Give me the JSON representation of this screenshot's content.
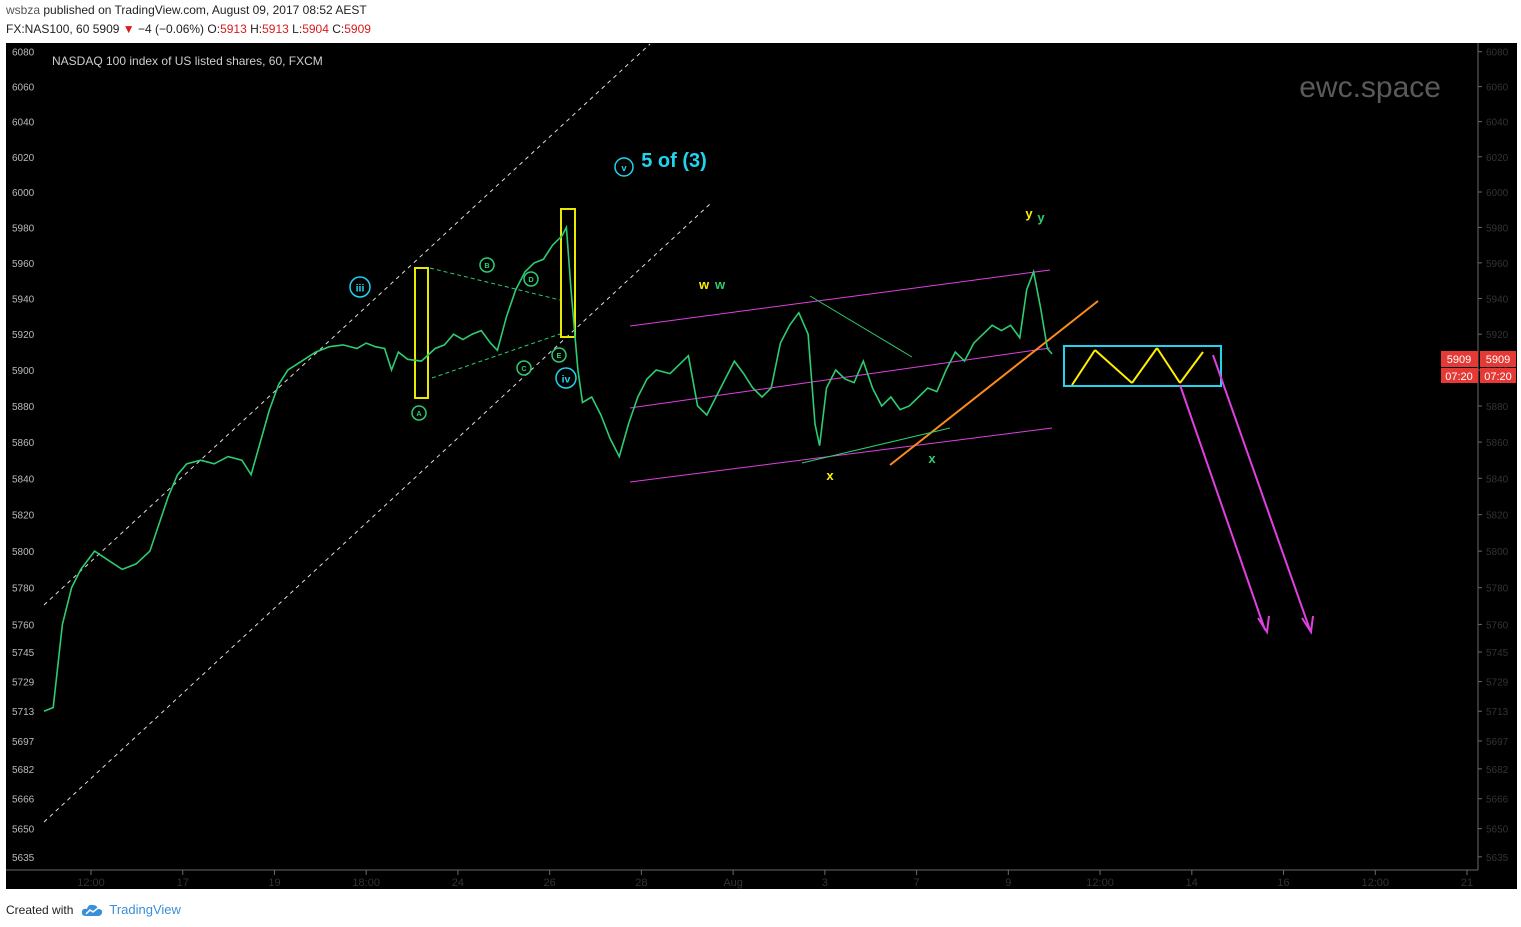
{
  "header": {
    "username": "wsbza",
    "published_text": "published on TradingView.com, August 09, 2017 08:52 AEST",
    "symbol_interval": "FX:NAS100, 60",
    "last": "5909",
    "change": "−4 (−0.06%)",
    "open_label": "O:",
    "open": "5913",
    "high_label": "H:",
    "high": "5913",
    "low_label": "L:",
    "low": "5904",
    "close_label": "C:",
    "close": "5909"
  },
  "footer": {
    "created_with": "Created with",
    "brand": "TradingView"
  },
  "chart_data": {
    "type": "line",
    "title": "NASDAQ 100 index of US listed shares, 60, FXCM",
    "watermark": "ewc.space",
    "y_scale": "log",
    "ylim": [
      5628,
      6085
    ],
    "y_ticks": [
      6080,
      6060,
      6040,
      6020,
      6000,
      5980,
      5960,
      5940,
      5920,
      5900,
      5880,
      5860,
      5840,
      5820,
      5800,
      5780,
      5760,
      5745,
      5729,
      5713,
      5697,
      5682,
      5666,
      5650,
      5635
    ],
    "x_ticks": [
      "12:00",
      "17",
      "19",
      "18:00",
      "24",
      "26",
      "28",
      "Aug",
      "3",
      "7",
      "9",
      "12:00",
      "14",
      "16",
      "12:00",
      "21"
    ],
    "price_label": "5909",
    "countdown_label": "07:20",
    "series": [
      {
        "values": [
          [
            0,
            5713
          ],
          [
            4,
            5715
          ],
          [
            8,
            5760
          ],
          [
            12,
            5780
          ],
          [
            16,
            5790
          ],
          [
            22,
            5800
          ],
          [
            28,
            5795
          ],
          [
            34,
            5790
          ],
          [
            40,
            5793
          ],
          [
            46,
            5800
          ],
          [
            50,
            5815
          ],
          [
            54,
            5830
          ],
          [
            58,
            5842
          ],
          [
            62,
            5848
          ],
          [
            68,
            5850
          ],
          [
            74,
            5848
          ],
          [
            80,
            5852
          ],
          [
            86,
            5850
          ],
          [
            90,
            5842
          ],
          [
            94,
            5860
          ],
          [
            98,
            5878
          ],
          [
            102,
            5892
          ],
          [
            106,
            5900
          ],
          [
            112,
            5905
          ],
          [
            118,
            5910
          ],
          [
            124,
            5913
          ],
          [
            130,
            5914
          ],
          [
            136,
            5912
          ],
          [
            140,
            5915
          ],
          [
            144,
            5913
          ],
          [
            148,
            5912
          ],
          [
            151,
            5900
          ],
          [
            154,
            5910
          ],
          [
            158,
            5906
          ],
          [
            164,
            5905
          ],
          [
            170,
            5912
          ],
          [
            174,
            5914
          ],
          [
            178,
            5920
          ],
          [
            182,
            5917
          ],
          [
            186,
            5920
          ],
          [
            190,
            5922
          ],
          [
            194,
            5915
          ],
          [
            197,
            5911
          ],
          [
            201,
            5930
          ],
          [
            205,
            5945
          ],
          [
            209,
            5955
          ],
          [
            213,
            5960
          ],
          [
            217,
            5962
          ],
          [
            221,
            5970
          ],
          [
            225,
            5975
          ],
          [
            227,
            5980
          ],
          [
            229,
            5945
          ],
          [
            232,
            5900
          ],
          [
            234,
            5882
          ],
          [
            238,
            5885
          ],
          [
            242,
            5875
          ],
          [
            246,
            5862
          ],
          [
            250,
            5852
          ],
          [
            254,
            5870
          ],
          [
            258,
            5885
          ],
          [
            262,
            5895
          ],
          [
            266,
            5900
          ],
          [
            272,
            5898
          ],
          [
            276,
            5903
          ],
          [
            280,
            5908
          ],
          [
            284,
            5880
          ],
          [
            288,
            5875
          ],
          [
            292,
            5885
          ],
          [
            296,
            5895
          ],
          [
            300,
            5905
          ],
          [
            304,
            5898
          ],
          [
            308,
            5890
          ],
          [
            312,
            5885
          ],
          [
            316,
            5890
          ],
          [
            320,
            5915
          ],
          [
            324,
            5925
          ],
          [
            328,
            5932
          ],
          [
            332,
            5920
          ],
          [
            335,
            5870
          ],
          [
            337,
            5858
          ],
          [
            340,
            5890
          ],
          [
            344,
            5900
          ],
          [
            348,
            5895
          ],
          [
            352,
            5893
          ],
          [
            356,
            5905
          ],
          [
            360,
            5890
          ],
          [
            364,
            5880
          ],
          [
            368,
            5885
          ],
          [
            372,
            5878
          ],
          [
            376,
            5880
          ],
          [
            380,
            5885
          ],
          [
            384,
            5890
          ],
          [
            388,
            5888
          ],
          [
            392,
            5900
          ],
          [
            396,
            5910
          ],
          [
            400,
            5905
          ],
          [
            404,
            5915
          ],
          [
            408,
            5920
          ],
          [
            412,
            5925
          ],
          [
            416,
            5922
          ],
          [
            420,
            5925
          ],
          [
            424,
            5918
          ],
          [
            427,
            5945
          ],
          [
            430,
            5955
          ],
          [
            433,
            5935
          ],
          [
            436,
            5912
          ],
          [
            438,
            5909
          ]
        ]
      }
    ],
    "annotations": [
      "5 of (3)",
      "v",
      "iii",
      "iv",
      "A",
      "B",
      "C",
      "D",
      "E",
      "w",
      "w",
      "x",
      "x",
      "y",
      "y"
    ]
  }
}
